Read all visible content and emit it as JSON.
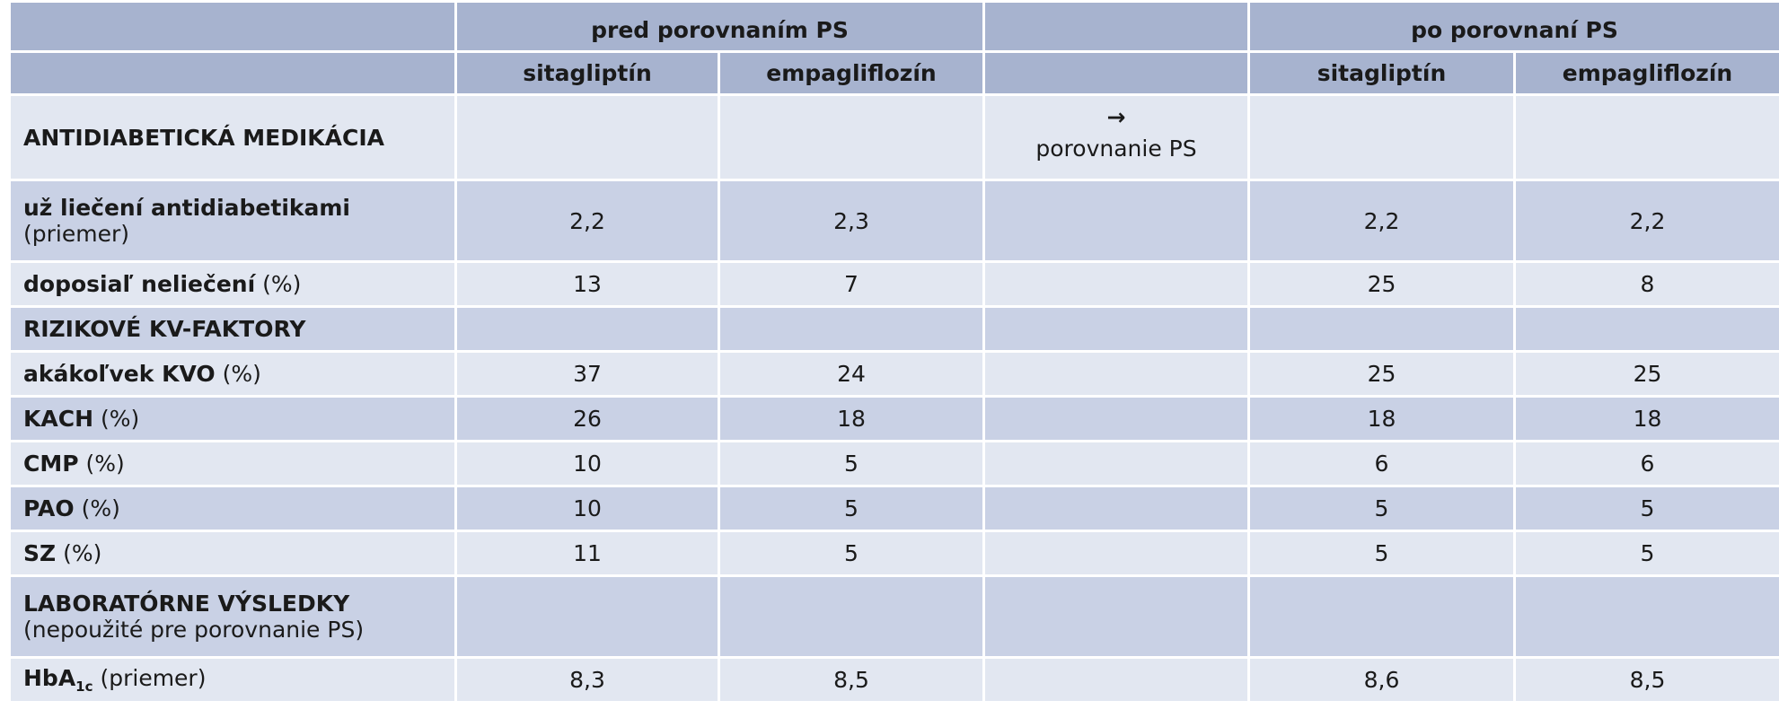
{
  "headers": {
    "group_before": "pred porovnaním PS",
    "group_after": "po porovnaní PS",
    "sitagliptin": "sitagliptín",
    "empagliflozin": "empagliflozín"
  },
  "arrow": "→",
  "arrow_label": "porovnanie PS",
  "rows": [
    {
      "label": "ANTIDIABETICKÁ MEDIKÁCIA"
    },
    {
      "label": "už liečení antidiabetikami",
      "note": "(priemer)",
      "v1": "2,2",
      "v2": "2,3",
      "v3": "2,2",
      "v4": "2,2"
    },
    {
      "label": "doposiaľ neliečení",
      "note": "(%)",
      "v1": "13",
      "v2": "7",
      "v3": "25",
      "v4": "8"
    },
    {
      "label": "RIZIKOVÉ KV-FAKTORY"
    },
    {
      "label": "akákoľvek KVO",
      "note": "(%)",
      "v1": "37",
      "v2": "24",
      "v3": "25",
      "v4": "25"
    },
    {
      "label": "KACH",
      "note": "(%)",
      "v1": "26",
      "v2": "18",
      "v3": "18",
      "v4": "18"
    },
    {
      "label": "CMP",
      "note": "(%)",
      "v1": "10",
      "v2": "5",
      "v3": "6",
      "v4": "6"
    },
    {
      "label": "PAO",
      "note": "(%)",
      "v1": "10",
      "v2": "5",
      "v3": "5",
      "v4": "5"
    },
    {
      "label": "SZ",
      "note": "(%)",
      "v1": "11",
      "v2": "5",
      "v3": "5",
      "v4": "5"
    },
    {
      "label": "LABORATÓRNE VÝSLEDKY",
      "note": "(nepoužité pre porovnanie PS)"
    },
    {
      "label": "HbA",
      "sub": "1c",
      "note": "(priemer)",
      "v1": "8,3",
      "v2": "8,5",
      "v3": "8,6",
      "v4": "8,5"
    }
  ]
}
